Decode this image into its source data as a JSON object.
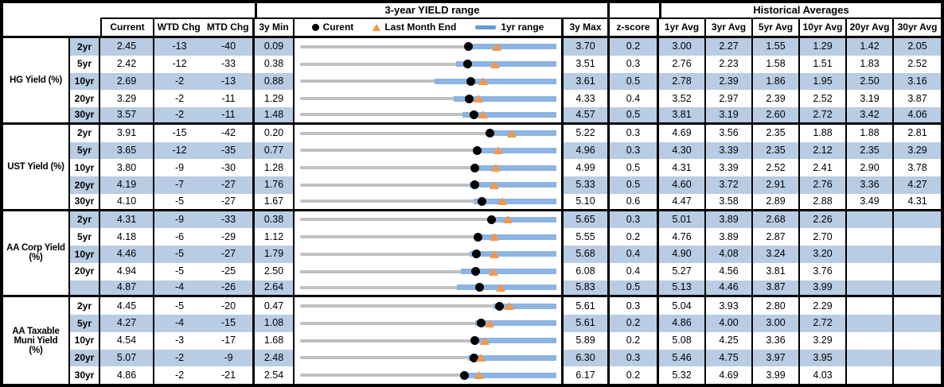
{
  "chart_data": {
    "type": "table",
    "title": "3-year YIELD range",
    "hist_title": "Historical Averages",
    "columns": {
      "current": "Current",
      "wtd": "WTD Chg",
      "mtd": "MTD Chg",
      "min3y": "3y Min",
      "max3y": "3y Max",
      "zscore": "z-score",
      "avgs": [
        "1yr Avg",
        "3yr Avg",
        "5yr Avg",
        "10yr Avg",
        "20yr Avg",
        "30yr Avg"
      ]
    },
    "legend": {
      "current": "Curent",
      "last_month_end": "Last Month End",
      "range_1yr": "1yr range"
    },
    "colors": {
      "stripe_blue": "#b8cce4",
      "bar_blue": "#8db4e2",
      "legend_bar_blue": "#6699d6",
      "marker_orange": "#f79646",
      "track_gray": "#c0c0c0",
      "border_black": "#000000"
    },
    "sections": [
      {
        "label_lines": [
          "HG Yield (%)"
        ],
        "rows": [
          {
            "tenor": "2yr",
            "current": "2.45",
            "wtd": "-13",
            "mtd": "-40",
            "min3y": "0.09",
            "max3y": "3.70",
            "zscore": "0.2",
            "avgs": [
              "3.00",
              "2.27",
              "1.55",
              "1.29",
              "1.42",
              "2.05"
            ],
            "lme": 2.85,
            "lo1yr": 2.42
          },
          {
            "tenor": "5yr",
            "current": "2.42",
            "wtd": "-12",
            "mtd": "-33",
            "min3y": "0.38",
            "max3y": "3.51",
            "zscore": "0.3",
            "avgs": [
              "2.76",
              "2.23",
              "1.58",
              "1.51",
              "1.83",
              "2.52"
            ],
            "lme": 2.75,
            "lo1yr": 2.28
          },
          {
            "tenor": "10yr",
            "current": "2.69",
            "wtd": "-2",
            "mtd": "-13",
            "min3y": "0.88",
            "max3y": "3.61",
            "zscore": "0.5",
            "avgs": [
              "2.78",
              "2.39",
              "1.86",
              "1.95",
              "2.50",
              "3.16"
            ],
            "lme": 2.82,
            "lo1yr": 2.31
          },
          {
            "tenor": "20yr",
            "current": "3.29",
            "wtd": "-2",
            "mtd": "-11",
            "min3y": "1.29",
            "max3y": "4.33",
            "zscore": "0.4",
            "avgs": [
              "3.52",
              "2.97",
              "2.39",
              "2.52",
              "3.19",
              "3.87"
            ],
            "lme": 3.4,
            "lo1yr": 3.11
          },
          {
            "tenor": "30yr",
            "current": "3.57",
            "wtd": "-2",
            "mtd": "-11",
            "min3y": "1.48",
            "max3y": "4.57",
            "zscore": "0.5",
            "avgs": [
              "3.81",
              "3.19",
              "2.60",
              "2.72",
              "3.42",
              "4.06"
            ],
            "lme": 3.68,
            "lo1yr": 3.43
          }
        ]
      },
      {
        "label_lines": [
          "UST Yield (%)"
        ],
        "rows": [
          {
            "tenor": "2yr",
            "current": "3.91",
            "wtd": "-15",
            "mtd": "-42",
            "min3y": "0.20",
            "max3y": "5.22",
            "zscore": "0.3",
            "avgs": [
              "4.69",
              "3.56",
              "2.35",
              "1.88",
              "1.88",
              "2.81"
            ],
            "lme": 4.33,
            "lo1yr": 3.85
          },
          {
            "tenor": "5yr",
            "current": "3.65",
            "wtd": "-12",
            "mtd": "-35",
            "min3y": "0.77",
            "max3y": "4.96",
            "zscore": "0.3",
            "avgs": [
              "4.30",
              "3.39",
              "2.35",
              "2.12",
              "2.35",
              "3.29"
            ],
            "lme": 4.0,
            "lo1yr": 3.62
          },
          {
            "tenor": "10yr",
            "current": "3.80",
            "wtd": "-9",
            "mtd": "-30",
            "min3y": "1.28",
            "max3y": "4.99",
            "zscore": "0.5",
            "avgs": [
              "4.31",
              "3.39",
              "2.52",
              "2.41",
              "2.90",
              "3.78"
            ],
            "lme": 4.1,
            "lo1yr": 3.77
          },
          {
            "tenor": "20yr",
            "current": "4.19",
            "wtd": "-7",
            "mtd": "-27",
            "min3y": "1.76",
            "max3y": "5.33",
            "zscore": "0.5",
            "avgs": [
              "4.60",
              "3.72",
              "2.91",
              "2.76",
              "3.36",
              "4.27"
            ],
            "lme": 4.46,
            "lo1yr": 4.11
          },
          {
            "tenor": "30yr",
            "current": "4.10",
            "wtd": "-5",
            "mtd": "-27",
            "min3y": "1.67",
            "max3y": "5.10",
            "zscore": "0.6",
            "avgs": [
              "4.47",
              "3.58",
              "2.89",
              "2.88",
              "3.49",
              "4.31"
            ],
            "lme": 4.37,
            "lo1yr": 3.99
          }
        ]
      },
      {
        "label_lines": [
          "AA Corp Yield",
          "(%)"
        ],
        "rows": [
          {
            "tenor": "2yr",
            "current": "4.31",
            "wtd": "-9",
            "mtd": "-33",
            "min3y": "0.38",
            "max3y": "5.65",
            "zscore": "0.3",
            "avgs": [
              "5.01",
              "3.89",
              "2.68",
              "2.26",
              "",
              ""
            ],
            "lme": 4.64,
            "lo1yr": 4.24
          },
          {
            "tenor": "5yr",
            "current": "4.18",
            "wtd": "-6",
            "mtd": "-29",
            "min3y": "1.12",
            "max3y": "5.55",
            "zscore": "0.2",
            "avgs": [
              "4.76",
              "3.89",
              "2.87",
              "2.70",
              "",
              ""
            ],
            "lme": 4.47,
            "lo1yr": 4.16
          },
          {
            "tenor": "10yr",
            "current": "4.46",
            "wtd": "-5",
            "mtd": "-27",
            "min3y": "1.79",
            "max3y": "5.68",
            "zscore": "0.4",
            "avgs": [
              "4.90",
              "4.08",
              "3.24",
              "3.20",
              "",
              ""
            ],
            "lme": 4.73,
            "lo1yr": 4.35
          },
          {
            "tenor": "20yr",
            "current": "4.94",
            "wtd": "-5",
            "mtd": "-25",
            "min3y": "2.50",
            "max3y": "6.08",
            "zscore": "0.4",
            "avgs": [
              "5.27",
              "4.56",
              "3.81",
              "3.76",
              "",
              ""
            ],
            "lme": 5.19,
            "lo1yr": 4.74
          },
          {
            "tenor": "",
            "current": "4.87",
            "wtd": "-4",
            "mtd": "-26",
            "min3y": "2.64",
            "max3y": "5.83",
            "zscore": "0.5",
            "avgs": [
              "5.13",
              "4.46",
              "3.87",
              "3.99",
              "",
              ""
            ],
            "lme": 5.13,
            "lo1yr": 4.59
          }
        ]
      },
      {
        "label_lines": [
          "AA Taxable",
          "Muni Yield",
          "(%)"
        ],
        "rows": [
          {
            "tenor": "2yr",
            "current": "4.45",
            "wtd": "-5",
            "mtd": "-20",
            "min3y": "0.47",
            "max3y": "5.61",
            "zscore": "0.3",
            "avgs": [
              "5.04",
              "3.93",
              "2.80",
              "2.29",
              "",
              ""
            ],
            "lme": 4.65,
            "lo1yr": 4.34
          },
          {
            "tenor": "5yr",
            "current": "4.27",
            "wtd": "-4",
            "mtd": "-15",
            "min3y": "1.08",
            "max3y": "5.61",
            "zscore": "0.2",
            "avgs": [
              "4.86",
              "4.00",
              "3.00",
              "2.72",
              "",
              ""
            ],
            "lme": 4.42,
            "lo1yr": 4.17
          },
          {
            "tenor": "10yr",
            "current": "4.54",
            "wtd": "-3",
            "mtd": "-17",
            "min3y": "1.68",
            "max3y": "5.89",
            "zscore": "0.2",
            "avgs": [
              "5.08",
              "4.25",
              "3.36",
              "3.29",
              "",
              ""
            ],
            "lme": 4.71,
            "lo1yr": 4.48
          },
          {
            "tenor": "20yr",
            "current": "5.07",
            "wtd": "-2",
            "mtd": "-9",
            "min3y": "2.48",
            "max3y": "6.30",
            "zscore": "0.3",
            "avgs": [
              "5.46",
              "4.75",
              "3.97",
              "3.95",
              "",
              ""
            ],
            "lme": 5.16,
            "lo1yr": 4.98
          },
          {
            "tenor": "30yr",
            "current": "4.86",
            "wtd": "-2",
            "mtd": "-21",
            "min3y": "2.54",
            "max3y": "6.17",
            "zscore": "0.2",
            "avgs": [
              "5.32",
              "4.69",
              "3.99",
              "4.03",
              "",
              ""
            ],
            "lme": 5.07,
            "lo1yr": 4.81
          }
        ]
      }
    ]
  }
}
